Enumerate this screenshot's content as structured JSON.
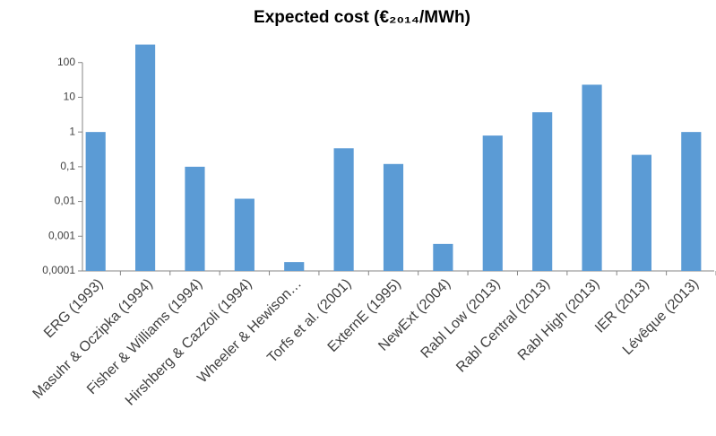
{
  "chart_data": {
    "type": "bar",
    "title": "Expected cost (€₂₀₁₄/MWh)",
    "categories": [
      "ERG (1993)",
      "Masuhr & Oczipka (1994)",
      "Fisher & Williams (1994)",
      "Hirshberg & Cazzoli (1994)",
      "Wheeler & Hewison…",
      "Torfs et al. (2001)",
      "ExternE (1995)",
      "NewExt (2004)",
      "Rabl Low (2013)",
      "Rabl Central (2013)",
      "Rabl High (2013)",
      "IER (2013)",
      "Lévêque (2013)"
    ],
    "values": [
      1,
      330,
      0.1,
      0.012,
      0.00018,
      0.34,
      0.12,
      0.0006,
      0.79,
      3.7,
      23,
      0.22,
      1
    ],
    "color": "#5b9bd5",
    "log_scale": true,
    "grid": false,
    "ylim": [
      0.0001,
      1000
    ],
    "yticks": [
      {
        "value": 0.0001,
        "label": "0,0001"
      },
      {
        "value": 0.001,
        "label": "0,001"
      },
      {
        "value": 0.01,
        "label": "0,01"
      },
      {
        "value": 0.1,
        "label": "0,1"
      },
      1,
      10,
      100
    ]
  }
}
